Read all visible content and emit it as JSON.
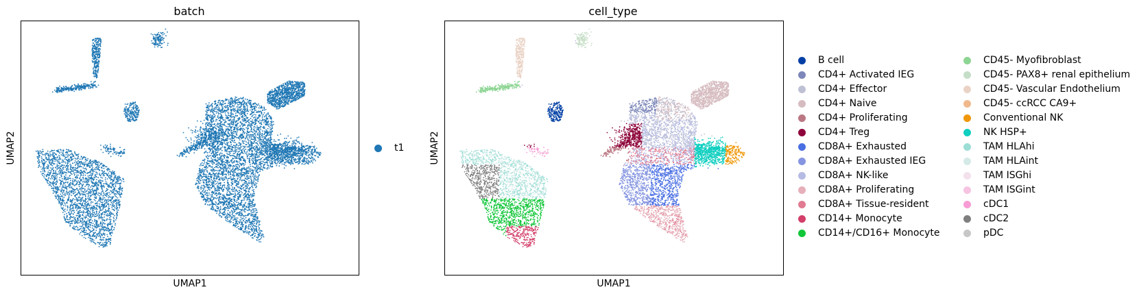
{
  "chart_data": [
    {
      "type": "scatter",
      "title": "batch",
      "xlabel": "UMAP1",
      "ylabel": "UMAP2",
      "grid": false,
      "xticks": false,
      "yticks": false,
      "legend_position": "right",
      "series": [
        {
          "name": "t1",
          "color": "#1f77b4"
        }
      ]
    },
    {
      "type": "scatter",
      "title": "cell_type",
      "xlabel": "UMAP1",
      "ylabel": "UMAP2",
      "grid": false,
      "xticks": false,
      "yticks": false,
      "legend_position": "right",
      "legend_columns": 2,
      "series": [
        {
          "name": "B cell",
          "color": "#023fa5"
        },
        {
          "name": "CD4+ Activated IEG",
          "color": "#7d87b9"
        },
        {
          "name": "CD4+ Effector",
          "color": "#bec1d4"
        },
        {
          "name": "CD4+ Naive",
          "color": "#d6bcc0"
        },
        {
          "name": "CD4+ Proliferating",
          "color": "#bb7784"
        },
        {
          "name": "CD4+ Treg",
          "color": "#8e063b"
        },
        {
          "name": "CD8A+ Exhausted",
          "color": "#4a6fe3"
        },
        {
          "name": "CD8A+ Exhausted IEG",
          "color": "#8595e1"
        },
        {
          "name": "CD8A+ NK-like",
          "color": "#b5bbe3"
        },
        {
          "name": "CD8A+ Proliferating",
          "color": "#e6afb9"
        },
        {
          "name": "CD8A+ Tissue-resident",
          "color": "#e07b91"
        },
        {
          "name": "CD14+ Monocyte",
          "color": "#d33f6a"
        },
        {
          "name": "CD14+/CD16+ Monocyte",
          "color": "#11c638"
        },
        {
          "name": "CD45- Myofibroblast",
          "color": "#8dd593"
        },
        {
          "name": "CD45- PAX8+ renal epithelium",
          "color": "#c6dec7"
        },
        {
          "name": "CD45- Vascular Endothelium",
          "color": "#ead3c6"
        },
        {
          "name": "CD45- ccRCC CA9+",
          "color": "#f0b98d"
        },
        {
          "name": "Conventional NK",
          "color": "#ef9708"
        },
        {
          "name": "NK HSP+",
          "color": "#0fcfc0"
        },
        {
          "name": "TAM HLAhi",
          "color": "#9cded6"
        },
        {
          "name": "TAM HLAint",
          "color": "#d5eae7"
        },
        {
          "name": "TAM ISGhi",
          "color": "#f3e1eb"
        },
        {
          "name": "TAM ISGint",
          "color": "#f6c4e1"
        },
        {
          "name": "cDC1",
          "color": "#f79cd4"
        },
        {
          "name": "cDC2",
          "color": "#7f7f7f"
        },
        {
          "name": "pDC",
          "color": "#c7c7c7"
        }
      ]
    }
  ]
}
